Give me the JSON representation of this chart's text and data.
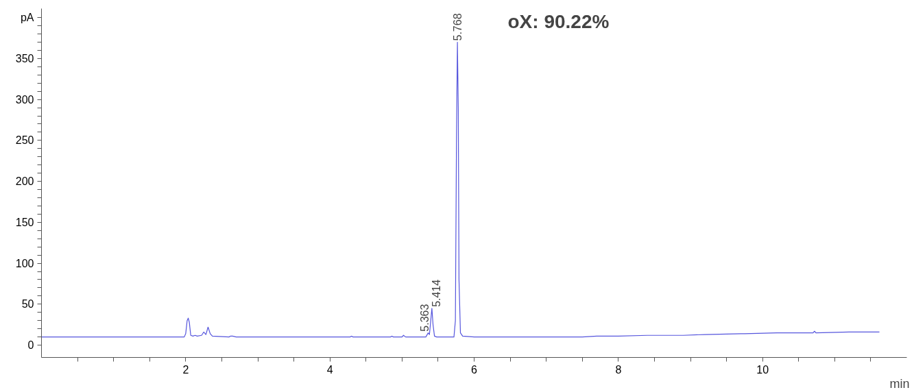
{
  "chart_data": {
    "type": "line",
    "xlabel": "min",
    "x": [
      0,
      1.98,
      2.0,
      2.02,
      2.035,
      2.05,
      2.07,
      2.1,
      2.13,
      2.16,
      2.22,
      2.25,
      2.28,
      2.31,
      2.34,
      2.37,
      2.6,
      2.62,
      2.65,
      2.7,
      4.28,
      4.3,
      4.32,
      4.84,
      4.86,
      4.88,
      5.0,
      5.02,
      5.05,
      5.33,
      5.363,
      5.38,
      5.414,
      5.43,
      5.45,
      5.48,
      5.72,
      5.74,
      5.755,
      5.768,
      5.78,
      5.79,
      5.81,
      5.84,
      6.0,
      6.5,
      7.0,
      7.5,
      7.7,
      8.0,
      8.4,
      8.9,
      9.2,
      9.7,
      9.75,
      10.2,
      10.7,
      10.72,
      10.74,
      11.2,
      11.62
    ],
    "series": [
      {
        "color": "#5555dd",
        "values": [
          10,
          10,
          14,
          30,
          33,
          28,
          12,
          11,
          12,
          11,
          12,
          16,
          13,
          22,
          14,
          11,
          10,
          11,
          11,
          10,
          10,
          11,
          10,
          10,
          11,
          10,
          10,
          12,
          10,
          10,
          15,
          13,
          45,
          25,
          11,
          10,
          10,
          30,
          250,
          370,
          290,
          80,
          15,
          11,
          10,
          10,
          10,
          10,
          11,
          11,
          12,
          12,
          13,
          14,
          14,
          15,
          15,
          17,
          15,
          16,
          16
        ]
      }
    ],
    "xlim": [
      0,
      12
    ],
    "ylim": [
      -15,
      411
    ],
    "xticks": [
      {
        "value": 0.5,
        "label": null
      },
      {
        "value": 1,
        "label": null
      },
      {
        "value": 1.5,
        "label": null
      },
      2,
      {
        "value": 2.5,
        "label": null
      },
      {
        "value": 3,
        "label": null
      },
      {
        "value": 3.5,
        "label": null
      },
      4,
      {
        "value": 4.5,
        "label": null
      },
      {
        "value": 5,
        "label": null
      },
      {
        "value": 5.5,
        "label": null
      },
      6,
      {
        "value": 6.5,
        "label": null
      },
      {
        "value": 7,
        "label": null
      },
      {
        "value": 7.5,
        "label": null
      },
      8,
      {
        "value": 8.5,
        "label": null
      },
      {
        "value": 9,
        "label": null
      },
      {
        "value": 9.5,
        "label": null
      },
      10,
      {
        "value": 10.5,
        "label": null
      },
      {
        "value": 11,
        "label": null
      },
      {
        "value": 11.5,
        "label": null
      }
    ],
    "yticks": [
      0,
      {
        "value": 10,
        "label": null
      },
      {
        "value": 20,
        "label": null
      },
      {
        "value": 30,
        "label": null
      },
      {
        "value": 40,
        "label": null
      },
      50,
      {
        "value": 60,
        "label": null
      },
      {
        "value": 70,
        "label": null
      },
      {
        "value": 80,
        "label": null
      },
      {
        "value": 90,
        "label": null
      },
      100,
      {
        "value": 110,
        "label": null
      },
      {
        "value": 120,
        "label": null
      },
      {
        "value": 130,
        "label": null
      },
      {
        "value": 140,
        "label": null
      },
      150,
      {
        "value": 160,
        "label": null
      },
      {
        "value": 170,
        "label": null
      },
      {
        "value": 180,
        "label": null
      },
      {
        "value": 190,
        "label": null
      },
      200,
      {
        "value": 210,
        "label": null
      },
      {
        "value": 220,
        "label": null
      },
      {
        "value": 230,
        "label": null
      },
      {
        "value": 240,
        "label": null
      },
      250,
      {
        "value": 260,
        "label": null
      },
      {
        "value": 270,
        "label": null
      },
      {
        "value": 280,
        "label": null
      },
      {
        "value": 290,
        "label": null
      },
      300,
      {
        "value": 310,
        "label": null
      },
      {
        "value": 320,
        "label": null
      },
      {
        "value": 330,
        "label": null
      },
      {
        "value": 340,
        "label": null
      },
      350,
      {
        "value": 360,
        "label": null
      },
      {
        "value": 370,
        "label": null
      },
      {
        "value": 380,
        "label": null
      },
      {
        "value": 390,
        "label": null
      },
      {
        "value": 400,
        "label": "pA"
      }
    ],
    "grid": false,
    "marker": "none",
    "line_style": "solid",
    "annotations": [
      {
        "text": "5.363",
        "x": 5.363,
        "y": 15
      },
      {
        "text": "5.414",
        "x": 5.414,
        "y": 45
      },
      {
        "text": "5.768",
        "x": 5.768,
        "y": 370
      },
      "oX: 90.22%"
    ]
  }
}
